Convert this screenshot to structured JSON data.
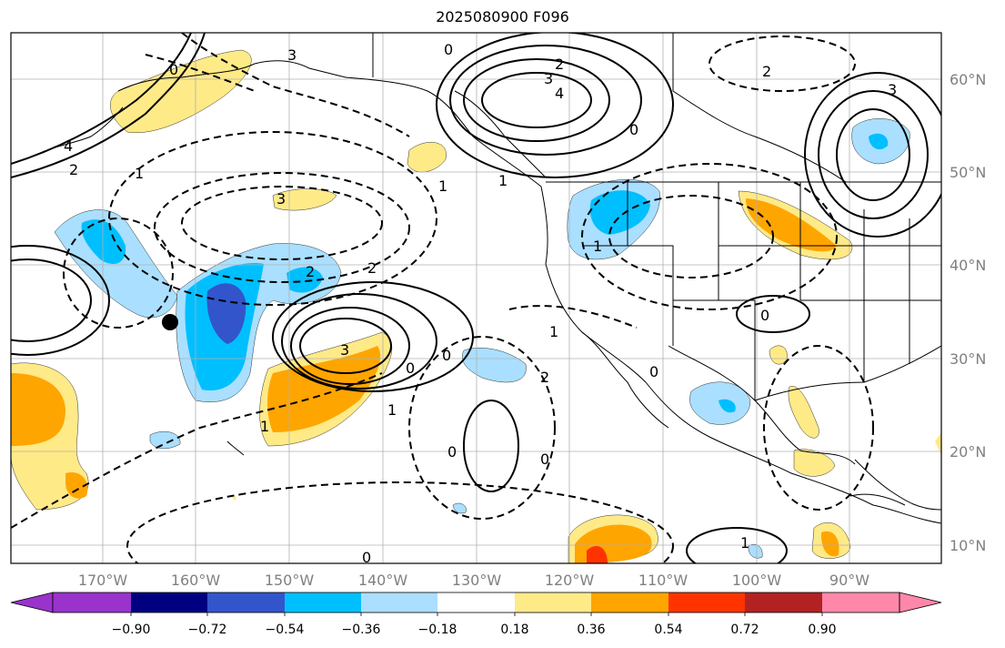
{
  "title": "2025080900 F096",
  "map": {
    "lon_labels": [
      "170°W",
      "160°W",
      "150°W",
      "140°W",
      "130°W",
      "120°W",
      "110°W",
      "100°W",
      "90°W"
    ],
    "lat_labels": [
      "60°N",
      "50°N",
      "40°N",
      "30°N",
      "20°N",
      "10°N"
    ],
    "grid": true,
    "station_marker": "black-dot"
  },
  "contour_labels": [
    "3",
    "0",
    "2",
    "3",
    "4",
    "2",
    "1",
    "0",
    "1",
    "3",
    "1",
    "2",
    "4",
    "0",
    "1",
    "2",
    "2",
    "3",
    "3",
    "0",
    "1",
    "0",
    "2",
    "0",
    "1",
    "0",
    "1",
    "0",
    "1",
    "0",
    "0"
  ],
  "colorbar": {
    "tick_labels": [
      "−0.90",
      "−0.72",
      "−0.54",
      "−0.36",
      "−0.18",
      "0.18",
      "0.36",
      "0.54",
      "0.72",
      "0.90"
    ],
    "colors": [
      "#9933cc",
      "#000080",
      "#3355cc",
      "#00bfff",
      "#aadfff",
      "#ffffff",
      "#ffea88",
      "#ffa500",
      "#ff3300",
      "#b22222",
      "#ff88aa"
    ]
  }
}
